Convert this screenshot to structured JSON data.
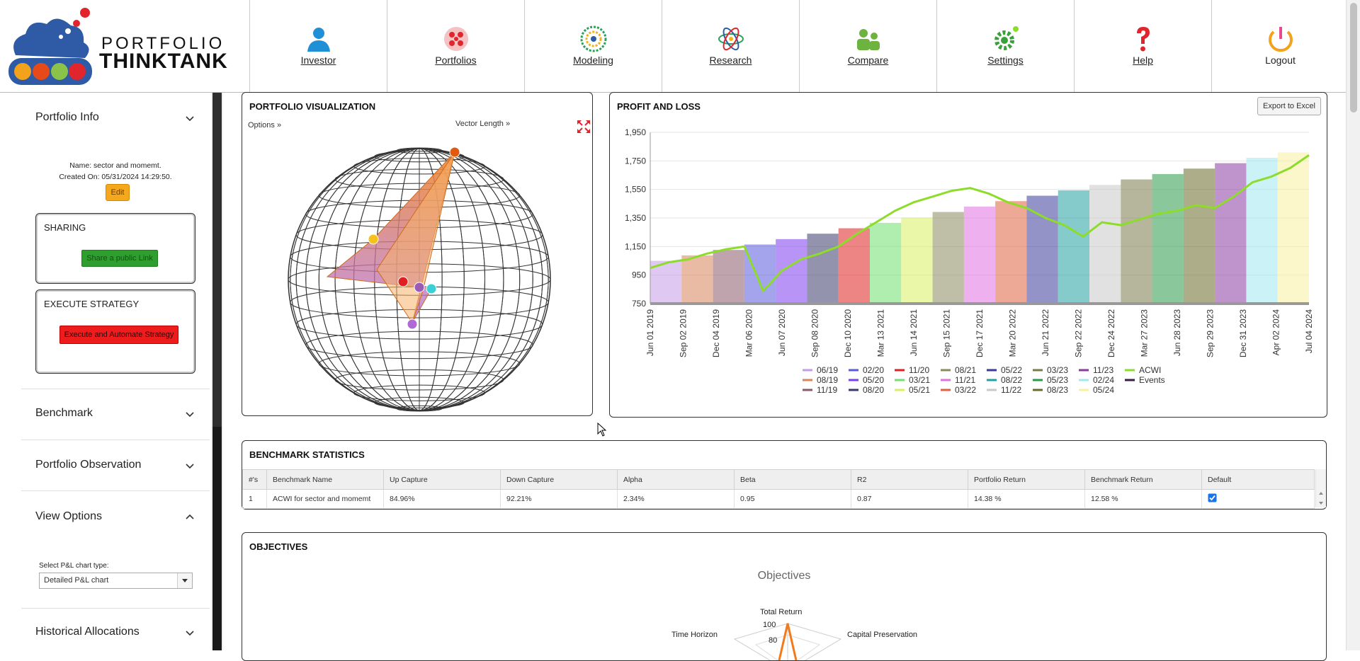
{
  "logo": {
    "line1": "PORTFOLIO",
    "line2": "THINKTANK"
  },
  "nav": [
    {
      "label": "Investor",
      "icon": "person-icon"
    },
    {
      "label": "Portfolios",
      "icon": "portfolio-pie-icon"
    },
    {
      "label": "Modeling",
      "icon": "modeling-globe-icon"
    },
    {
      "label": "Research",
      "icon": "atom-icon"
    },
    {
      "label": "Compare",
      "icon": "compare-people-icon"
    },
    {
      "label": "Settings",
      "icon": "gear-icon"
    },
    {
      "label": "Help",
      "icon": "question-icon"
    },
    {
      "label": "Logout",
      "icon": "power-icon"
    }
  ],
  "sidebar": {
    "portfolio_info": {
      "title": "Portfolio Info",
      "name_line": "Name: sector and momemt.",
      "created_line": "Created On: 05/31/2024 14:29:50.",
      "edit_label": "Edit"
    },
    "sharing": {
      "title": "SHARING",
      "button": "Share a public Link"
    },
    "execute": {
      "title": "EXECUTE STRATEGY",
      "button": "Execute and Automate Strategy"
    },
    "benchmark": "Benchmark",
    "observation": "Portfolio Observation",
    "view_options": {
      "title": "View Options",
      "select_label": "Select P&L chart type:",
      "select_value": "Detailed P&L chart"
    },
    "historical": "Historical Allocations"
  },
  "viz": {
    "title": "PORTFOLIO VISUALIZATION",
    "options": "Options »",
    "vector_length": "Vector Length »"
  },
  "pnl": {
    "title": "PROFIT AND LOSS",
    "export_label": "Export to Excel"
  },
  "chart_data": {
    "type": "area",
    "title": "PROFIT AND LOSS",
    "ylim": [
      750,
      1950
    ],
    "yticks": [
      "1,950",
      "1,750",
      "1,550",
      "1,350",
      "1,150",
      "950",
      "750"
    ],
    "xticks": [
      "Jun 01 2019",
      "Sep 02 2019",
      "Dec 04 2019",
      "Mar 06 2020",
      "Jun 07 2020",
      "Sep 08 2020",
      "Dec 10 2020",
      "Mar 13 2021",
      "Jun 14 2021",
      "Sep 15 2021",
      "Dec 17 2021",
      "Mar 20 2022",
      "Jun 21 2022",
      "Sep 22 2022",
      "Dec 24 2022",
      "Mar 27 2023",
      "Jun 28 2023",
      "Sep 29 2023",
      "Dec 31 2023",
      "Apr 02 2024",
      "Jul 04 2024"
    ],
    "series": [
      {
        "name": "06/19",
        "color": "#c59ae8"
      },
      {
        "name": "08/19",
        "color": "#d9845a"
      },
      {
        "name": "11/19",
        "color": "#8a5a6a"
      },
      {
        "name": "02/20",
        "color": "#5a5adc"
      },
      {
        "name": "05/20",
        "color": "#7d3cf0"
      },
      {
        "name": "08/20",
        "color": "#3a3a6a"
      },
      {
        "name": "11/20",
        "color": "#e02020"
      },
      {
        "name": "03/21",
        "color": "#6fe06f"
      },
      {
        "name": "05/21",
        "color": "#d8f060"
      },
      {
        "name": "08/21",
        "color": "#8a8a60"
      },
      {
        "name": "11/21",
        "color": "#e070e0"
      },
      {
        "name": "03/22",
        "color": "#e06040"
      },
      {
        "name": "05/22",
        "color": "#3a3a9a"
      },
      {
        "name": "08/22",
        "color": "#20a0a0"
      },
      {
        "name": "11/22",
        "color": "#c8c8c8"
      },
      {
        "name": "03/23",
        "color": "#7a7a4a"
      },
      {
        "name": "05/23",
        "color": "#2a9a4a"
      },
      {
        "name": "08/23",
        "color": "#6a6a2a"
      },
      {
        "name": "11/23",
        "color": "#8a3aa0"
      },
      {
        "name": "02/24",
        "color": "#a0e8f0"
      },
      {
        "name": "05/24",
        "color": "#f8f0a0"
      },
      {
        "name": "ACWI",
        "color": "#8edc2a"
      },
      {
        "name": "Events",
        "color": "#3a1a4a"
      }
    ],
    "acwi": [
      1000,
      1040,
      1060,
      1100,
      1130,
      1150,
      840,
      980,
      1060,
      1100,
      1150,
      1240,
      1320,
      1400,
      1460,
      1500,
      1540,
      1560,
      1520,
      1460,
      1420,
      1350,
      1300,
      1220,
      1320,
      1300,
      1340,
      1380,
      1400,
      1440,
      1420,
      1500,
      1600,
      1640,
      1700,
      1790
    ]
  },
  "bench": {
    "title": "BENCHMARK STATISTICS",
    "columns": [
      "#'s",
      "Benchmark Name",
      "Up Capture",
      "Down Capture",
      "Alpha",
      "Beta",
      "R2",
      "Portfolio Return",
      "Benchmark Return",
      "Default"
    ],
    "row": [
      "1",
      "ACWI for sector and momemt",
      "84.96%",
      "92.21%",
      "2.34%",
      "0.95",
      "0.87",
      "14.38 %",
      "12.58 %"
    ]
  },
  "objectives": {
    "title": "OBJECTIVES",
    "chart_title": "Objectives",
    "labels": [
      "Total Return",
      "Time Horizon",
      "Capital Preservation"
    ],
    "ticks": [
      "100",
      "80"
    ]
  }
}
